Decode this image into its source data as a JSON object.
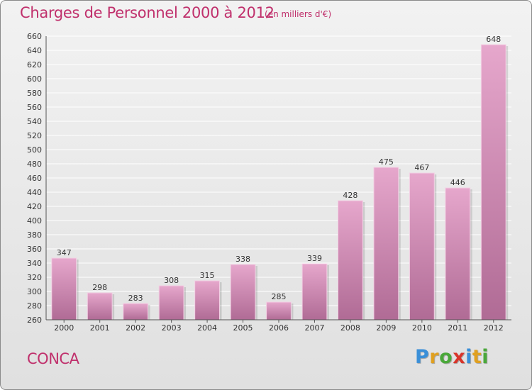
{
  "header": {
    "title": "Charges de Personnel 2000 à 2012",
    "subtitle": "(en milliers d'€)"
  },
  "footer": {
    "commune": "CONCA",
    "logo": {
      "letters": [
        "P",
        "r",
        "o",
        "x",
        "i",
        "t",
        "i"
      ],
      "colors": [
        "#3a8fd8",
        "#e0a020",
        "#4aa83a",
        "#d8342a",
        "#3a8fd8",
        "#e0a020",
        "#4aa83a"
      ]
    }
  },
  "colors": {
    "bar_light": "#e6a7cc",
    "bar_dark": "#b06b95",
    "text_accent": "#c0306c",
    "grid": "#ffffff"
  },
  "chart_data": {
    "type": "bar",
    "title": "Charges de Personnel 2000 à 2012",
    "subtitle": "(en milliers d'€)",
    "categories": [
      "2000",
      "2001",
      "2002",
      "2003",
      "2004",
      "2005",
      "2006",
      "2007",
      "2008",
      "2009",
      "2010",
      "2011",
      "2012"
    ],
    "values": [
      347,
      298,
      283,
      308,
      315,
      338,
      285,
      339,
      428,
      475,
      467,
      446,
      648
    ],
    "ylim": [
      260,
      660
    ],
    "ytick_step": 20,
    "grid": true,
    "legend": "none"
  }
}
